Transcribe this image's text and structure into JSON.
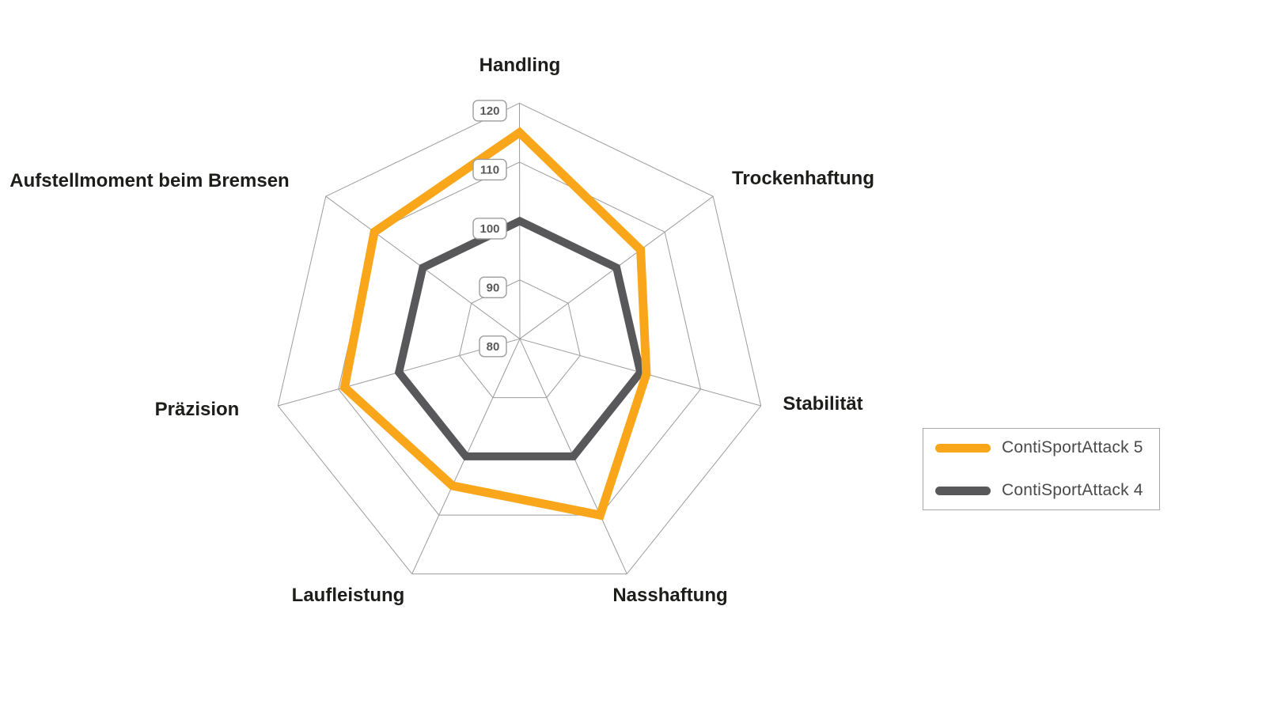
{
  "page": {
    "background": "#ffffff"
  },
  "chart_data": {
    "type": "radar",
    "title": "",
    "categories": [
      "Handling",
      "Trockenhaftung",
      "Stabilität",
      "Nasshaftung",
      "Laufleistung",
      "Präzision",
      "Aufstellmoment beim Bremsen"
    ],
    "series": [
      {
        "name": "ContiSportAttack 5",
        "color": "#f9a61a",
        "stroke_width": 11,
        "values": [
          115,
          105,
          101,
          110,
          105,
          109,
          110
        ]
      },
      {
        "name": "ContiSportAttack 4",
        "color": "#58585a",
        "stroke_width": 10,
        "values": [
          100,
          100,
          100,
          100,
          100,
          100,
          100
        ]
      }
    ],
    "ticks": [
      80,
      90,
      100,
      110,
      120
    ],
    "tick_labels": [
      "80",
      "90",
      "100",
      "110",
      "120"
    ],
    "range": [
      80,
      120
    ],
    "grid": {
      "shape": "heptagon",
      "color": "#9b9b9b",
      "rings": [
        90,
        100,
        110,
        120
      ]
    },
    "axis_label_color": "#1d1d1b",
    "tick_box": {
      "fill": "#ffffff",
      "border": "#9c9c9c",
      "text_color": "#58585a"
    },
    "legend_position": "right"
  },
  "legend": {
    "items": [
      {
        "label": "ContiSportAttack 5",
        "color": "#f9a61a"
      },
      {
        "label": "ContiSportAttack 4",
        "color": "#58585a"
      }
    ]
  }
}
